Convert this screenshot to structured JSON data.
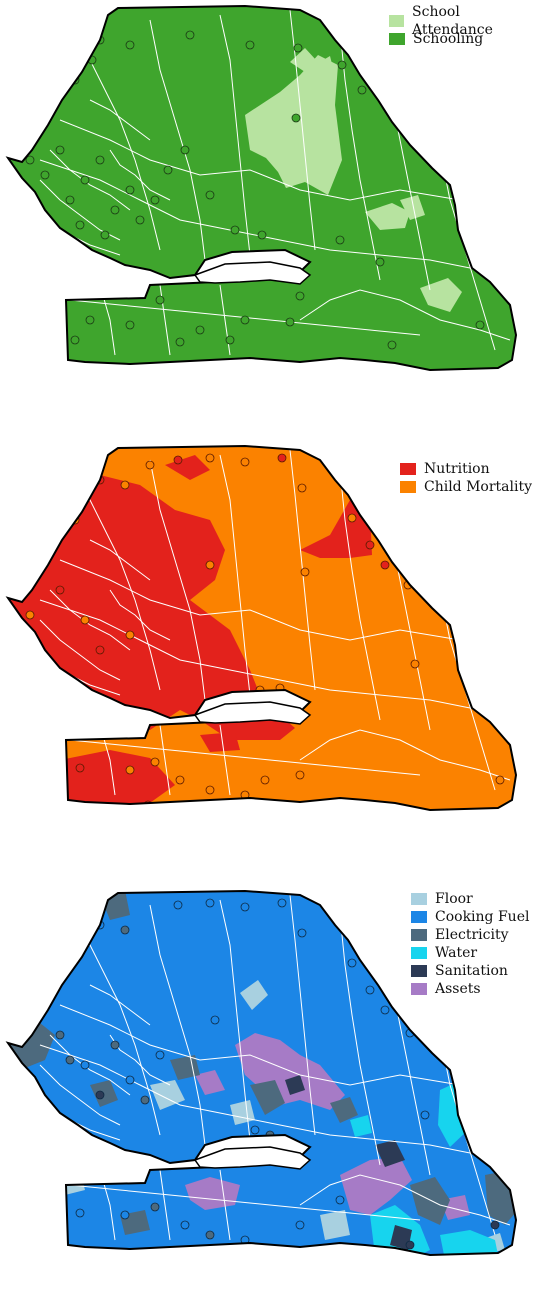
{
  "panels": [
    {
      "legend": [
        {
          "label": "School Attendance",
          "color": "#b7e3a0"
        },
        {
          "label": "Schooling",
          "color": "#3fa52d"
        }
      ]
    },
    {
      "legend": [
        {
          "label": "Nutrition",
          "color": "#e3221c"
        },
        {
          "label": "Child Mortality",
          "color": "#fb8200"
        }
      ]
    },
    {
      "legend": [
        {
          "label": "Floor",
          "color": "#a8d0e0"
        },
        {
          "label": "Cooking Fuel",
          "color": "#1c86e6"
        },
        {
          "label": "Electricity",
          "color": "#4d6a7e"
        },
        {
          "label": "Water",
          "color": "#17d4ee"
        },
        {
          "label": "Sanitation",
          "color": "#2c3a55"
        },
        {
          "label": "Assets",
          "color": "#a67bc6"
        }
      ]
    }
  ]
}
